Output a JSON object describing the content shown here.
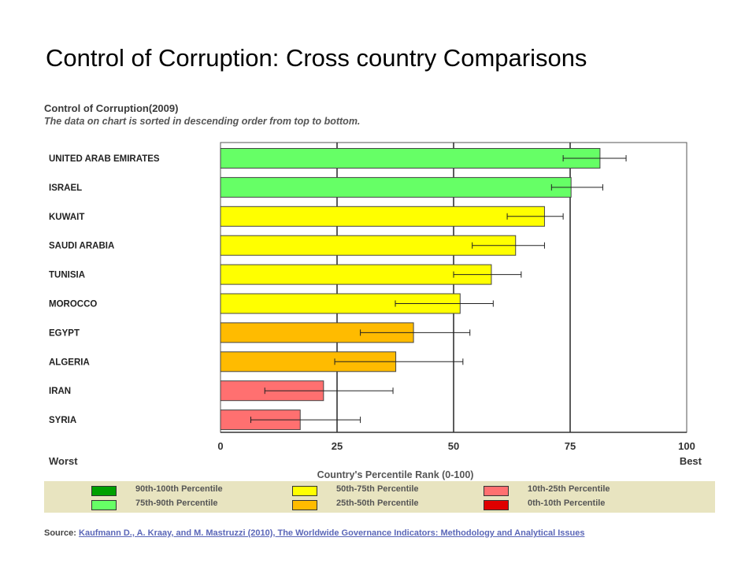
{
  "slide": {
    "title": "Control of Corruption: Cross country Comparisons"
  },
  "chart_header": {
    "title": "Control of Corruption",
    "year": "(2009)",
    "subtitle": "The data on chart is sorted in descending order from top to bottom."
  },
  "chart_data": {
    "type": "bar",
    "orientation": "horizontal",
    "title": "Control of Corruption(2009)",
    "xlabel": "Country's Percentile Rank (0-100)",
    "xlim": [
      0,
      100
    ],
    "x_ticks": [
      "0",
      "25",
      "50",
      "75",
      "100"
    ],
    "x_min_label": "Worst",
    "x_max_label": "Best",
    "grid": "vertical",
    "categories": [
      "UNITED ARAB EMIRATES",
      "ISRAEL",
      "KUWAIT",
      "SAUDI ARABIA",
      "TUNISIA",
      "MOROCCO",
      "EGYPT",
      "ALGERIA",
      "IRAN",
      "SYRIA"
    ],
    "values": [
      81.4,
      75.2,
      69.5,
      63.3,
      58.1,
      51.4,
      41.4,
      37.6,
      22.1,
      17.1
    ],
    "error_low": [
      73.5,
      71.0,
      61.5,
      54.0,
      50.0,
      37.5,
      30.0,
      24.5,
      9.5,
      6.5
    ],
    "error_high": [
      87.0,
      82.0,
      73.5,
      69.5,
      64.5,
      58.5,
      53.5,
      52.0,
      37.0,
      30.0
    ],
    "bar_colors": [
      "#66ff66",
      "#66ff66",
      "#ffff00",
      "#ffff00",
      "#ffff00",
      "#ffff00",
      "#ffbb00",
      "#ffbb00",
      "#ff7070",
      "#ff7070"
    ],
    "legend": [
      {
        "label": "90th-100th Percentile",
        "color": "#00a000"
      },
      {
        "label": "50th-75th Percentile",
        "color": "#ffff00"
      },
      {
        "label": "10th-25th Percentile",
        "color": "#ff7070"
      },
      {
        "label": "75th-90th Percentile",
        "color": "#66ff66"
      },
      {
        "label": "25th-50th Percentile",
        "color": "#ffbb00"
      },
      {
        "label": "0th-10th Percentile",
        "color": "#e00000"
      }
    ],
    "legend_position": "bottom"
  },
  "source": {
    "prefix": "Source:",
    "text": "Kaufmann D., A. Kraay, and M. Mastruzzi (2010), The Worldwide Governance Indicators: Methodology and Analytical Issues"
  }
}
